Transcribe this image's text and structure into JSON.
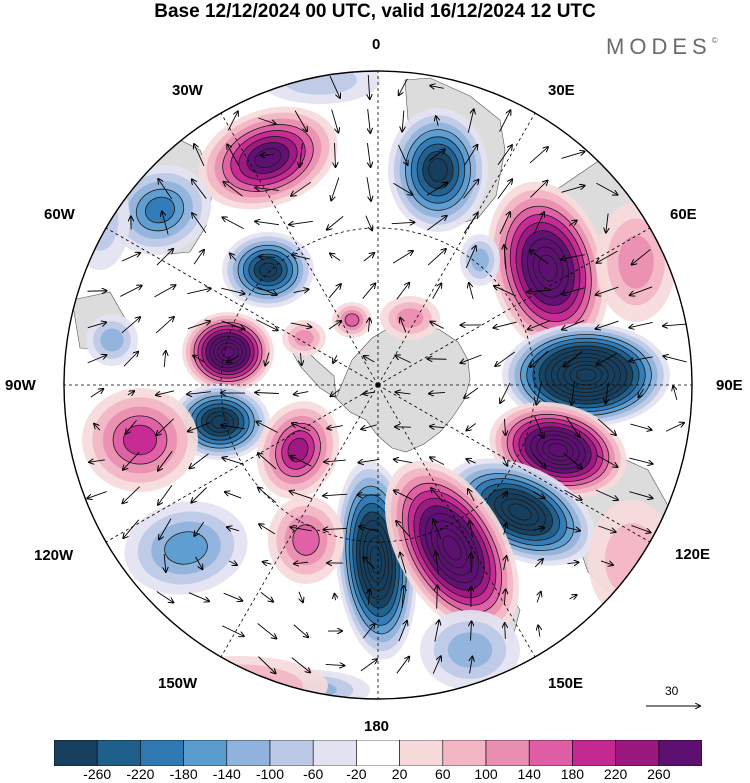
{
  "title": "Base 12/12/2024 00 UTC, valid 16/12/2024 12 UTC",
  "brand": {
    "name": "MODES",
    "mark": "©"
  },
  "meridian_labels": {
    "m0": "0",
    "m30e": "30E",
    "m60e": "60E",
    "m90e": "90E",
    "m120e": "120E",
    "m150e": "150E",
    "m180": "180",
    "m150w": "150W",
    "m120w": "120W",
    "m90w": "90W",
    "m60w": "60W",
    "m30w": "30W"
  },
  "reference_vector": {
    "value": "30"
  },
  "colorbar": {
    "ticks": [
      "-260",
      "-220",
      "-180",
      "-140",
      "-100",
      "-60",
      "-20",
      "20",
      "60",
      "100",
      "140",
      "180",
      "220",
      "260"
    ],
    "colors": [
      "#173f5f",
      "#1f5f8b",
      "#2f7ab5",
      "#5b9ccf",
      "#8fb3dc",
      "#bcc9e6",
      "#e2e2f1",
      "#ffffff",
      "#f6dada",
      "#f2b6c4",
      "#ea8fb2",
      "#df5ea5",
      "#c42891",
      "#9b1880",
      "#5e1072"
    ]
  },
  "colors": {
    "land": "#dcdcdc",
    "contour": "#000000",
    "border": "#000000"
  }
}
